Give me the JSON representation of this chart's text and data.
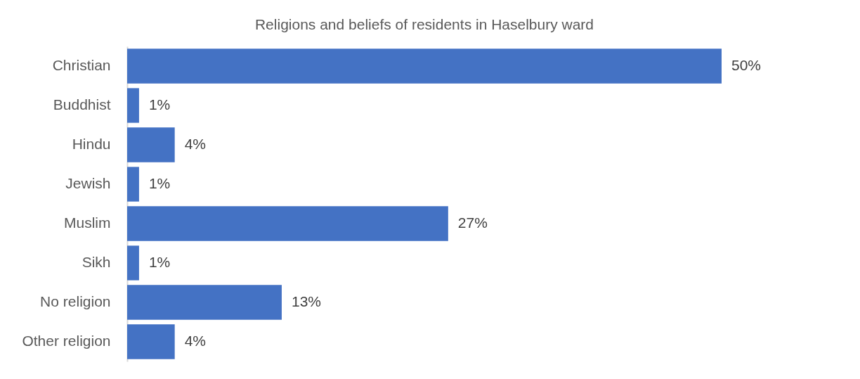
{
  "chart_data": {
    "type": "bar",
    "orientation": "horizontal",
    "title": "Religions and beliefs of residents in Haselbury ward",
    "categories": [
      "Christian",
      "Buddhist",
      "Hindu",
      "Jewish",
      "Muslim",
      "Sikh",
      "No religion",
      "Other religion"
    ],
    "values": [
      50,
      1,
      4,
      1,
      27,
      1,
      13,
      4
    ],
    "value_labels": [
      "50%",
      "1%",
      "4%",
      "1%",
      "27%",
      "1%",
      "13%",
      "4%"
    ],
    "color": "#4472c4"
  }
}
